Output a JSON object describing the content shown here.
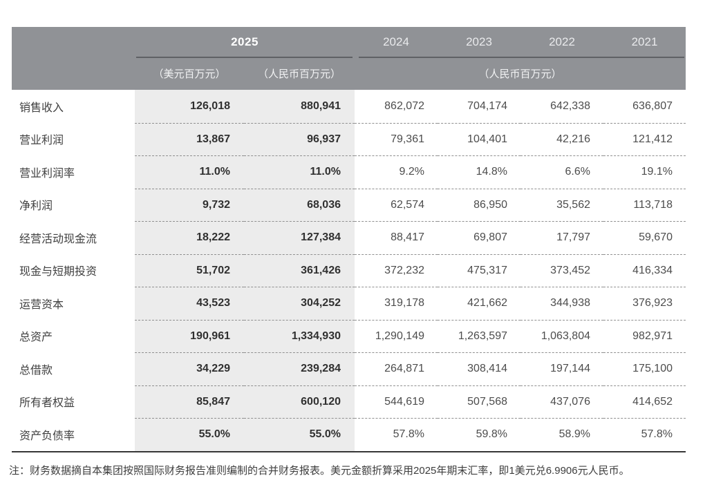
{
  "table": {
    "header": {
      "group2025": {
        "label": "2025",
        "usd_sub": "（美元百万元）",
        "rmb_sub": "（人民币百万元）"
      },
      "years": [
        "2024",
        "2023",
        "2022",
        "2021"
      ],
      "rmb_unit": "（人民币百万元）"
    },
    "rows": [
      {
        "label": "销售收入",
        "usd": "126,018",
        "rmb": "880,941",
        "y2024": "862,072",
        "y2023": "704,174",
        "y2022": "642,338",
        "y2021": "636,807"
      },
      {
        "label": "营业利润",
        "usd": "13,867",
        "rmb": "96,937",
        "y2024": "79,361",
        "y2023": "104,401",
        "y2022": "42,216",
        "y2021": "121,412"
      },
      {
        "label": "营业利润率",
        "usd": "11.0%",
        "rmb": "11.0%",
        "y2024": "9.2%",
        "y2023": "14.8%",
        "y2022": "6.6%",
        "y2021": "19.1%"
      },
      {
        "label": "净利润",
        "usd": "9,732",
        "rmb": "68,036",
        "y2024": "62,574",
        "y2023": "86,950",
        "y2022": "35,562",
        "y2021": "113,718"
      },
      {
        "label": "经营活动现金流",
        "usd": "18,222",
        "rmb": "127,384",
        "y2024": "88,417",
        "y2023": "69,807",
        "y2022": "17,797",
        "y2021": "59,670"
      },
      {
        "label": "现金与短期投资",
        "usd": "51,702",
        "rmb": "361,426",
        "y2024": "372,232",
        "y2023": "475,317",
        "y2022": "373,452",
        "y2021": "416,334"
      },
      {
        "label": "运营资本",
        "usd": "43,523",
        "rmb": "304,252",
        "y2024": "319,178",
        "y2023": "421,662",
        "y2022": "344,938",
        "y2021": "376,923"
      },
      {
        "label": "总资产",
        "usd": "190,961",
        "rmb": "1,334,930",
        "y2024": "1,290,149",
        "y2023": "1,263,597",
        "y2022": "1,063,804",
        "y2021": "982,971"
      },
      {
        "label": "总借款",
        "usd": "34,229",
        "rmb": "239,284",
        "y2024": "264,871",
        "y2023": "308,414",
        "y2022": "197,144",
        "y2021": "175,100"
      },
      {
        "label": "所有者权益",
        "usd": "85,847",
        "rmb": "600,120",
        "y2024": "544,619",
        "y2023": "507,568",
        "y2022": "437,076",
        "y2021": "414,652"
      },
      {
        "label": "资产负债率",
        "usd": "55.0%",
        "rmb": "55.0%",
        "y2024": "57.8%",
        "y2023": "59.8%",
        "y2022": "58.9%",
        "y2021": "57.8%"
      }
    ]
  },
  "note": "注：财务数据摘自本集团按照国际财务报告准则编制的合并财务报表。美元金额折算采用2025年期末汇率，即1美元兑6.9906元人民币。",
  "colors": {
    "header_bg": "#909296",
    "header_rule": "#5f6165",
    "header_text": "#ffffff",
    "band_bg": "#ececec",
    "dashed_line": "#8f8f8f",
    "bottom_border": "#363636",
    "text_dark": "#303030",
    "text_label": "#404040",
    "text_value": "#4c4c4c",
    "note_text": "#3d3d3d"
  }
}
